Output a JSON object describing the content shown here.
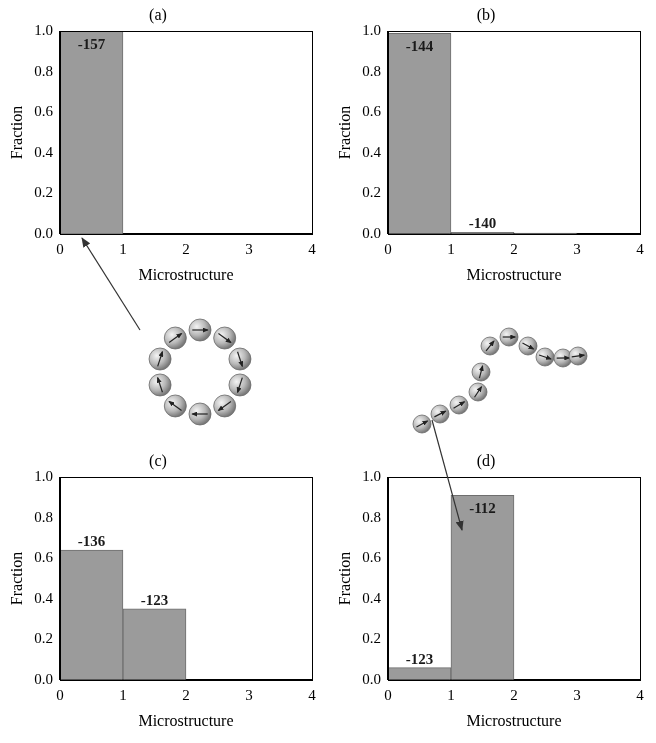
{
  "chart_data": [
    {
      "type": "bar",
      "title": "(a)",
      "x_label": "Microstructure",
      "y_label": "Fraction",
      "bins": [
        0,
        1,
        2,
        3,
        4
      ],
      "values": [
        1.0,
        0,
        0,
        0
      ],
      "energies": [
        -157,
        null,
        null,
        null
      ],
      "color": "#9b9b9b",
      "grid": false,
      "xlim": [
        0,
        4
      ],
      "xticks": [
        0,
        1,
        2,
        3,
        4
      ],
      "ylim": [
        0,
        1
      ],
      "yticks": [
        {
          "value": 0,
          "label": "0.0"
        },
        0.2,
        0.4,
        0.6,
        0.8,
        {
          "value": 1,
          "label": "1.0"
        }
      ]
    },
    {
      "type": "bar",
      "title": "(b)",
      "x_label": "Microstructure",
      "y_label": "Fraction",
      "bins": [
        0,
        1,
        2,
        3,
        4
      ],
      "values": [
        0.99,
        0.007,
        0.003,
        0
      ],
      "energies": [
        -144,
        -140,
        null,
        null
      ],
      "color": "#9b9b9b",
      "grid": false,
      "xlim": [
        0,
        4
      ],
      "xticks": [
        0,
        1,
        2,
        3,
        4
      ],
      "ylim": [
        0,
        1
      ],
      "yticks": [
        {
          "value": 0,
          "label": "0.0"
        },
        0.2,
        0.4,
        0.6,
        0.8,
        {
          "value": 1,
          "label": "1.0"
        }
      ]
    },
    {
      "type": "bar",
      "title": "(c)",
      "x_label": "Microstructure",
      "y_label": "Fraction",
      "bins": [
        0,
        1,
        2,
        3,
        4
      ],
      "values": [
        0.64,
        0.35,
        0,
        0
      ],
      "energies": [
        -136,
        -123,
        null,
        null
      ],
      "color": "#9b9b9b",
      "grid": false,
      "xlim": [
        0,
        4
      ],
      "xticks": [
        0,
        1,
        2,
        3,
        4
      ],
      "ylim": [
        0,
        1
      ],
      "yticks": [
        {
          "value": 0,
          "label": "0.0"
        },
        0.2,
        0.4,
        0.6,
        0.8,
        {
          "value": 1,
          "label": "1.0"
        }
      ]
    },
    {
      "type": "bar",
      "title": "(d)",
      "x_label": "Microstructure",
      "y_label": "Fraction",
      "bins": [
        0,
        1,
        2,
        3,
        4
      ],
      "values": [
        0.06,
        0.91,
        0,
        0
      ],
      "energies": [
        -123,
        -112,
        null,
        null
      ],
      "color": "#9b9b9b",
      "grid": false,
      "xlim": [
        0,
        4
      ],
      "xticks": [
        0,
        1,
        2,
        3,
        4
      ],
      "ylim": [
        0,
        1
      ],
      "yticks": [
        {
          "value": 0,
          "label": "0.0"
        },
        0.2,
        0.4,
        0.6,
        0.8,
        {
          "value": 1,
          "label": "1.0"
        }
      ]
    }
  ]
}
